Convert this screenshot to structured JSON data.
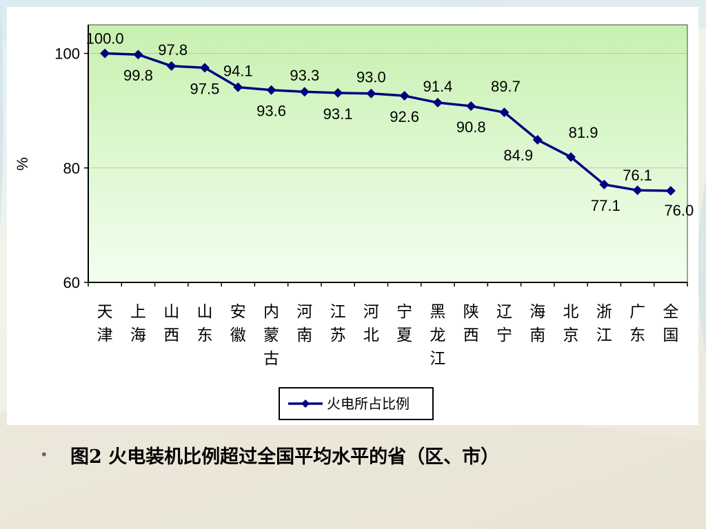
{
  "caption": {
    "bullet": "•",
    "text": "图2  火电装机比例超过全国平均水平的省（区、市）"
  },
  "colors": {
    "line": "#000080",
    "plot_top": "#c8f0b0",
    "plot_bottom": "#f2fff0"
  },
  "chart_data": {
    "type": "line",
    "categories": [
      "天津",
      "上海",
      "山西",
      "山东",
      "安徽",
      "内蒙古",
      "河南",
      "江苏",
      "河北",
      "宁夏",
      "黑龙江",
      "陕西",
      "辽宁",
      "海南",
      "北京",
      "浙江",
      "广东",
      "全国"
    ],
    "series": [
      {
        "name": "火电所占比例",
        "values": [
          100.0,
          99.8,
          97.8,
          97.5,
          94.1,
          93.6,
          93.3,
          93.1,
          93.0,
          92.6,
          91.4,
          90.8,
          89.7,
          84.9,
          81.9,
          77.1,
          76.1,
          76.0
        ],
        "labels": [
          "100.0",
          "99.8",
          "97.8",
          "97.5",
          "94.1",
          "93.6",
          "93.3",
          "93.1",
          "93.0",
          "92.6",
          "91.4",
          "90.8",
          "89.7",
          "84.9",
          "81.9",
          "77.1",
          "76.1",
          "76.0"
        ]
      }
    ],
    "ylabel": "%",
    "xlabel": "",
    "ylim": [
      60,
      100
    ],
    "yticks": [
      "60",
      "80",
      "100"
    ],
    "grid": true,
    "legend": "bottom-center"
  }
}
